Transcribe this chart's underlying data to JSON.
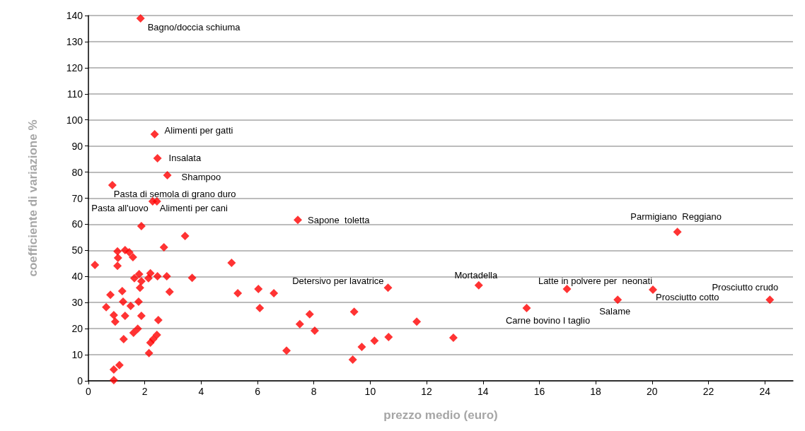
{
  "chart_data": {
    "type": "scatter",
    "xlabel": "prezzo medio (euro)",
    "ylabel": "coefficiente di variazione %",
    "xlim": [
      0,
      25
    ],
    "xticks": [
      0,
      2,
      4,
      6,
      8,
      10,
      12,
      14,
      16,
      18,
      20,
      22,
      24
    ],
    "ylim": [
      0,
      140
    ],
    "yticks": [
      0,
      10,
      20,
      30,
      40,
      50,
      60,
      70,
      80,
      90,
      100,
      110,
      120,
      130,
      140
    ],
    "grid": "y",
    "marker": "diamond",
    "series": [
      {
        "color": "#ff0000",
        "x": [
          1.85,
          2.35,
          2.45,
          2.8,
          0.85,
          2.28,
          2.43,
          7.43,
          10.63,
          13.85,
          15.55,
          16.98,
          18.78,
          20.03,
          20.9,
          24.18,
          1.88,
          3.43,
          2.68,
          1.03,
          1.3,
          1.45,
          1.58,
          1.05,
          0.23,
          1.03,
          1.8,
          1.63,
          1.88,
          2.2,
          2.13,
          2.45,
          2.78,
          3.68,
          1.83,
          2.88,
          0.78,
          1.2,
          1.23,
          1.5,
          1.78,
          0.63,
          0.9,
          1.3,
          1.88,
          0.95,
          2.48,
          1.75,
          1.6,
          2.43,
          2.3,
          2.2,
          1.25,
          2.15,
          1.1,
          0.9,
          0.9,
          5.08,
          5.3,
          6.03,
          6.58,
          6.08,
          7.85,
          7.5,
          8.03,
          7.03,
          9.43,
          9.38,
          9.7,
          10.15,
          10.65,
          11.65,
          12.95
        ],
        "values": [
          138.9,
          94.5,
          85.3,
          78.8,
          75.0,
          68.8,
          68.8,
          61.7,
          35.7,
          36.6,
          27.9,
          35.2,
          31.1,
          34.9,
          57.1,
          31.1,
          59.3,
          55.5,
          51.2,
          49.6,
          50.1,
          49.3,
          47.4,
          47.1,
          44.4,
          44.1,
          40.9,
          39.3,
          38.2,
          41.2,
          39.3,
          40.1,
          40.1,
          39.5,
          35.7,
          34.1,
          33.0,
          34.4,
          30.3,
          28.7,
          30.3,
          28.2,
          25.2,
          24.9,
          24.9,
          22.7,
          23.3,
          20.0,
          18.4,
          17.6,
          16.0,
          14.6,
          16.0,
          10.6,
          6.0,
          4.3,
          0.3,
          45.2,
          33.6,
          35.2,
          33.6,
          27.9,
          25.5,
          21.7,
          19.2,
          11.6,
          26.5,
          8.1,
          13.0,
          15.4,
          16.8,
          22.7,
          16.5
        ]
      }
    ],
    "annotations": [
      {
        "text": "Bagno/doccia schiuma",
        "x": 1.85,
        "y": 138.9
      },
      {
        "text": "Alimenti per gatti",
        "x": 2.35,
        "y": 94.5
      },
      {
        "text": "Insalata",
        "x": 2.45,
        "y": 85.3
      },
      {
        "text": "Shampoo",
        "x": 2.8,
        "y": 78.8
      },
      {
        "text": "Pasta di semola di grano duro",
        "x": 0.85,
        "y": 75.0
      },
      {
        "text": "Pasta all'uovo",
        "x": 2.28,
        "y": 68.8
      },
      {
        "text": "Alimenti per cani",
        "x": 2.43,
        "y": 68.8
      },
      {
        "text": "Sapone  toletta",
        "x": 7.43,
        "y": 61.7
      },
      {
        "text": "Detersivo per lavatrice",
        "x": 10.63,
        "y": 35.7
      },
      {
        "text": "Mortadella",
        "x": 13.85,
        "y": 36.6
      },
      {
        "text": "Carne bovino I taglio",
        "x": 15.55,
        "y": 27.9
      },
      {
        "text": "Latte in polvere per  neonati",
        "x": 16.98,
        "y": 35.2
      },
      {
        "text": "Salame",
        "x": 18.78,
        "y": 31.1
      },
      {
        "text": "Prosciutto cotto",
        "x": 20.03,
        "y": 34.9
      },
      {
        "text": "Parmigiano  Reggiano",
        "x": 20.9,
        "y": 57.1
      },
      {
        "text": "Prosciutto crudo",
        "x": 24.18,
        "y": 31.1
      }
    ]
  }
}
